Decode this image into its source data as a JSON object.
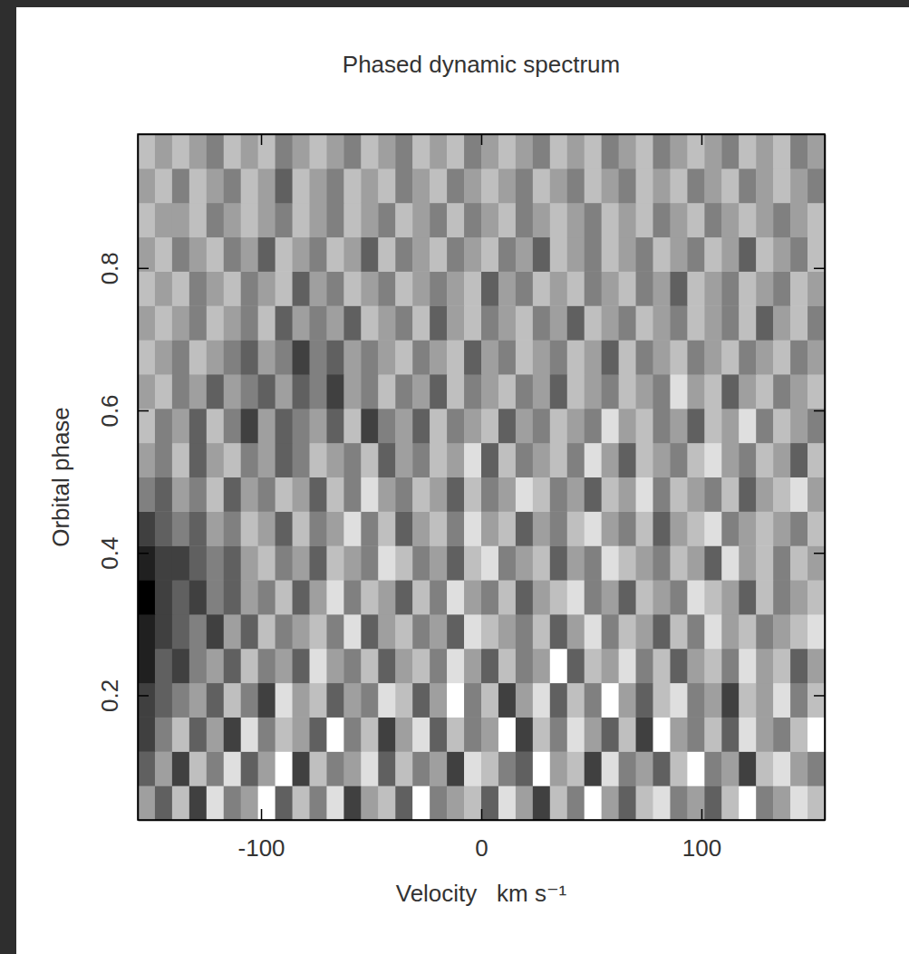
{
  "chart_data": {
    "type": "heatmap",
    "title": "Phased dynamic spectrum",
    "x_label": "Velocity   km s⁻¹",
    "y_label": "Orbital phase",
    "xlim": [
      -156,
      156
    ],
    "ylim": [
      0.025,
      0.988
    ],
    "xticks": [
      -100,
      0,
      100
    ],
    "yticks": [
      0.2,
      0.4,
      0.6,
      0.8
    ],
    "cells": [
      [
        5,
        3,
        6,
        2,
        7,
        4,
        5,
        8,
        3,
        6,
        4,
        7,
        2,
        5,
        6,
        3,
        8,
        4,
        5,
        6,
        3,
        7,
        5,
        2,
        6,
        4,
        8,
        5,
        3,
        6,
        7,
        4,
        5,
        3,
        6,
        8,
        4,
        5,
        7,
        6
      ],
      [
        3,
        5,
        2,
        6,
        4,
        7,
        3,
        5,
        8,
        2,
        6,
        4,
        5,
        7,
        3,
        6,
        4,
        5,
        2,
        7,
        6,
        4,
        3,
        8,
        5,
        6,
        2,
        7,
        4,
        5,
        3,
        6,
        8,
        4,
        5,
        2,
        6,
        7,
        5,
        4
      ],
      [
        2,
        4,
        6,
        3,
        5,
        2,
        7,
        4,
        6,
        5,
        3,
        8,
        4,
        6,
        2,
        5,
        7,
        3,
        6,
        4,
        5,
        8,
        2,
        6,
        4,
        7,
        5,
        3,
        6,
        2,
        8,
        5,
        4,
        6,
        3,
        7,
        5,
        4,
        6,
        8
      ],
      [
        2,
        3,
        4,
        5,
        3,
        6,
        4,
        2,
        7,
        5,
        6,
        3,
        5,
        4,
        7,
        6,
        3,
        5,
        8,
        4,
        6,
        2,
        5,
        7,
        3,
        6,
        4,
        8,
        5,
        3,
        6,
        7,
        4,
        5,
        2,
        6,
        5,
        7,
        4,
        6
      ],
      [
        1,
        3,
        2,
        4,
        5,
        3,
        6,
        4,
        5,
        3,
        7,
        5,
        4,
        6,
        3,
        5,
        6,
        4,
        7,
        5,
        3,
        6,
        4,
        5,
        8,
        3,
        6,
        5,
        7,
        4,
        6,
        3,
        5,
        6,
        4,
        7,
        5,
        6,
        3,
        5
      ],
      [
        1,
        2,
        3,
        4,
        2,
        5,
        3,
        6,
        4,
        5,
        6,
        4,
        7,
        3,
        5,
        6,
        4,
        5,
        3,
        7,
        6,
        5,
        4,
        6,
        3,
        5,
        7,
        4,
        6,
        5,
        3,
        6,
        4,
        7,
        5,
        6,
        4,
        5,
        6,
        7
      ],
      [
        0,
        2,
        3,
        2,
        4,
        3,
        5,
        4,
        6,
        3,
        5,
        7,
        4,
        6,
        5,
        3,
        6,
        4,
        7,
        5,
        4,
        6,
        3,
        5,
        6,
        7,
        4,
        5,
        3,
        6,
        5,
        4,
        7,
        6,
        5,
        3,
        6,
        4,
        5,
        6
      ],
      [
        1,
        2,
        2,
        3,
        4,
        3,
        5,
        6,
        4,
        5,
        3,
        6,
        5,
        4,
        7,
        6,
        4,
        5,
        3,
        6,
        7,
        4,
        5,
        6,
        3,
        5,
        4,
        7,
        6,
        5,
        4,
        6,
        5,
        3,
        7,
        5,
        6,
        4,
        6,
        5
      ],
      [
        2,
        3,
        4,
        3,
        5,
        4,
        6,
        5,
        3,
        6,
        4,
        5,
        7,
        4,
        6,
        3,
        5,
        6,
        4,
        7,
        5,
        6,
        3,
        5,
        4,
        6,
        7,
        5,
        4,
        6,
        3,
        5,
        6,
        7,
        4,
        5,
        6,
        5,
        4,
        6
      ],
      [
        4,
        3,
        5,
        4,
        6,
        3,
        5,
        4,
        6,
        5,
        3,
        6,
        4,
        7,
        5,
        4,
        6,
        5,
        3,
        6,
        4,
        5,
        7,
        6,
        4,
        5,
        3,
        6,
        5,
        7,
        4,
        6,
        5,
        4,
        6,
        3,
        5,
        6,
        7,
        5
      ],
      [
        5,
        4,
        6,
        3,
        5,
        6,
        4,
        5,
        3,
        4,
        6,
        5,
        4,
        6,
        3,
        5,
        4,
        6,
        5,
        7,
        3,
        6,
        4,
        5,
        6,
        4,
        7,
        5,
        3,
        6,
        5,
        4,
        6,
        7,
        5,
        4,
        6,
        5,
        3,
        6
      ],
      [
        6,
        4,
        5,
        3,
        6,
        4,
        2,
        5,
        3,
        4,
        5,
        3,
        6,
        2,
        4,
        5,
        3,
        6,
        4,
        5,
        6,
        3,
        5,
        4,
        6,
        5,
        4,
        7,
        5,
        6,
        4,
        5,
        3,
        6,
        5,
        7,
        4,
        6,
        5,
        4
      ],
      [
        5,
        6,
        4,
        5,
        3,
        5,
        4,
        3,
        5,
        3,
        4,
        2,
        5,
        4,
        6,
        4,
        5,
        3,
        6,
        4,
        5,
        6,
        4,
        5,
        3,
        6,
        5,
        4,
        6,
        5,
        4,
        7,
        5,
        6,
        3,
        5,
        6,
        4,
        5,
        6
      ],
      [
        6,
        5,
        4,
        6,
        5,
        4,
        3,
        5,
        4,
        2,
        4,
        3,
        5,
        4,
        5,
        6,
        4,
        5,
        6,
        3,
        5,
        4,
        6,
        5,
        4,
        6,
        5,
        3,
        6,
        4,
        5,
        6,
        4,
        5,
        6,
        4,
        5,
        6,
        4,
        5
      ],
      [
        5,
        6,
        5,
        4,
        6,
        5,
        4,
        6,
        3,
        5,
        4,
        5,
        3,
        6,
        5,
        4,
        6,
        3,
        5,
        6,
        4,
        5,
        6,
        4,
        5,
        3,
        6,
        5,
        4,
        6,
        5,
        4,
        6,
        5,
        4,
        6,
        3,
        5,
        6,
        4
      ],
      [
        6,
        5,
        6,
        4,
        5,
        6,
        4,
        5,
        6,
        3,
        5,
        4,
        6,
        5,
        4,
        6,
        5,
        4,
        5,
        6,
        3,
        5,
        4,
        6,
        5,
        6,
        4,
        5,
        6,
        4,
        5,
        3,
        6,
        5,
        4,
        6,
        5,
        4,
        6,
        5
      ],
      [
        5,
        6,
        4,
        5,
        6,
        4,
        5,
        3,
        6,
        5,
        4,
        6,
        5,
        3,
        6,
        4,
        5,
        6,
        4,
        5,
        6,
        4,
        5,
        3,
        6,
        5,
        4,
        6,
        5,
        4,
        6,
        5,
        4,
        6,
        5,
        3,
        6,
        5,
        4,
        6
      ],
      [
        6,
        5,
        5,
        6,
        4,
        5,
        6,
        5,
        4,
        6,
        5,
        4,
        6,
        5,
        4,
        6,
        5,
        4,
        6,
        4,
        5,
        6,
        4,
        5,
        6,
        5,
        4,
        6,
        5,
        6,
        4,
        5,
        6,
        4,
        5,
        6,
        5,
        4,
        5,
        6
      ],
      [
        5,
        6,
        4,
        6,
        5,
        4,
        6,
        5,
        3,
        6,
        5,
        4,
        6,
        5,
        6,
        4,
        5,
        6,
        4,
        5,
        6,
        5,
        4,
        6,
        5,
        4,
        6,
        5,
        4,
        6,
        5,
        6,
        4,
        5,
        6,
        4,
        5,
        6,
        5,
        4
      ],
      [
        6,
        5,
        6,
        5,
        4,
        6,
        5,
        6,
        4,
        5,
        6,
        5,
        4,
        6,
        5,
        4,
        6,
        5,
        6,
        4,
        5,
        6,
        5,
        4,
        6,
        5,
        6,
        4,
        5,
        6,
        4,
        5,
        6,
        5,
        4,
        6,
        5,
        6,
        4,
        5
      ]
    ]
  }
}
